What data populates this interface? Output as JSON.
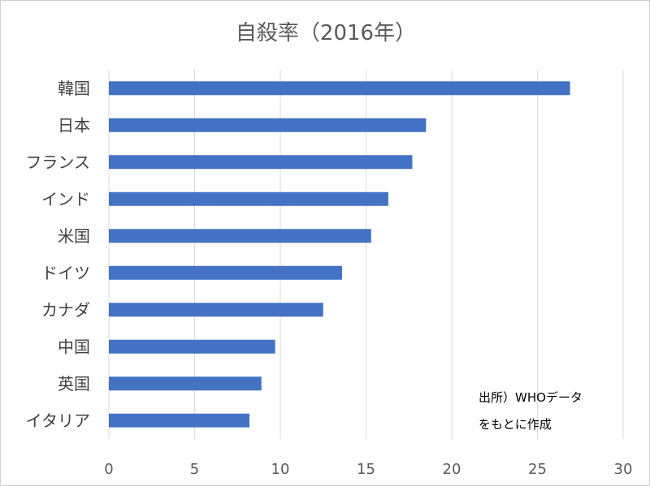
{
  "chart_data": {
    "type": "bar",
    "orientation": "horizontal",
    "title": "自殺率（2016年）",
    "categories": [
      "韓国",
      "日本",
      "フランス",
      "インド",
      "米国",
      "ドイツ",
      "カナダ",
      "中国",
      "英国",
      "イタリア"
    ],
    "values": [
      26.9,
      18.5,
      17.7,
      16.3,
      15.3,
      13.6,
      12.5,
      9.7,
      8.9,
      8.2
    ],
    "xlim": [
      0,
      30
    ],
    "xticks": [
      0,
      5,
      10,
      15,
      20,
      25,
      30
    ],
    "grid": true,
    "bar_color": "#4472c4",
    "annotation": [
      "出所）WHOデータ",
      "をもとに作成"
    ]
  }
}
